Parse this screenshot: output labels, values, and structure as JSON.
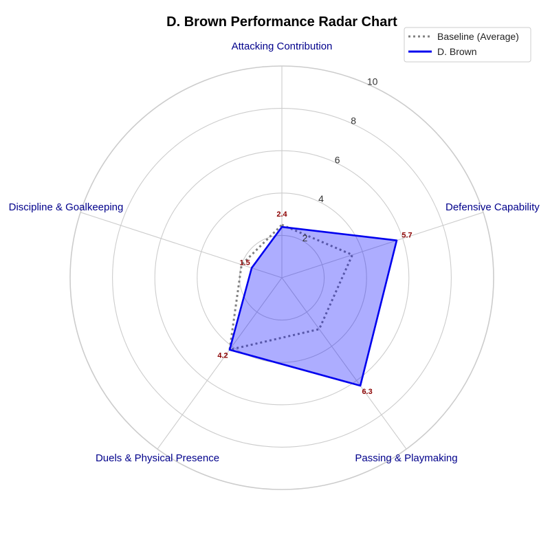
{
  "chart_data": {
    "type": "radar",
    "title": "D. Brown Performance Radar Chart",
    "axes": [
      "Attacking Contribution",
      "Defensive Capability",
      "Passing & Playmaking",
      "Duels & Physical Presence",
      "Discipline & Goalkeeping"
    ],
    "rlim": [
      0,
      10
    ],
    "rticks": [
      "2",
      "4",
      "6",
      "8",
      "10"
    ],
    "rtick_values": [
      2,
      4,
      6,
      8,
      10
    ],
    "series": [
      {
        "name": "Baseline (Average)",
        "values": [
          2.5,
          3.5,
          3.0,
          4.2,
          2.0
        ],
        "style": "dotted",
        "color": "#808080"
      },
      {
        "name": "D. Brown",
        "values": [
          2.4,
          5.7,
          6.3,
          4.2,
          1.5
        ],
        "value_labels": [
          "2.4",
          "5.7",
          "6.3",
          "4.2",
          "1.5"
        ],
        "style": "solid",
        "color": "#0000ee",
        "fill": "#0000ff",
        "fill_opacity": 0.32
      }
    ],
    "legend_position": "top-right",
    "grid": true,
    "colors": {
      "title": "#00008b",
      "axis_label": "#00008b",
      "value_label": "#8b0000",
      "grid": "#cccccc"
    }
  }
}
